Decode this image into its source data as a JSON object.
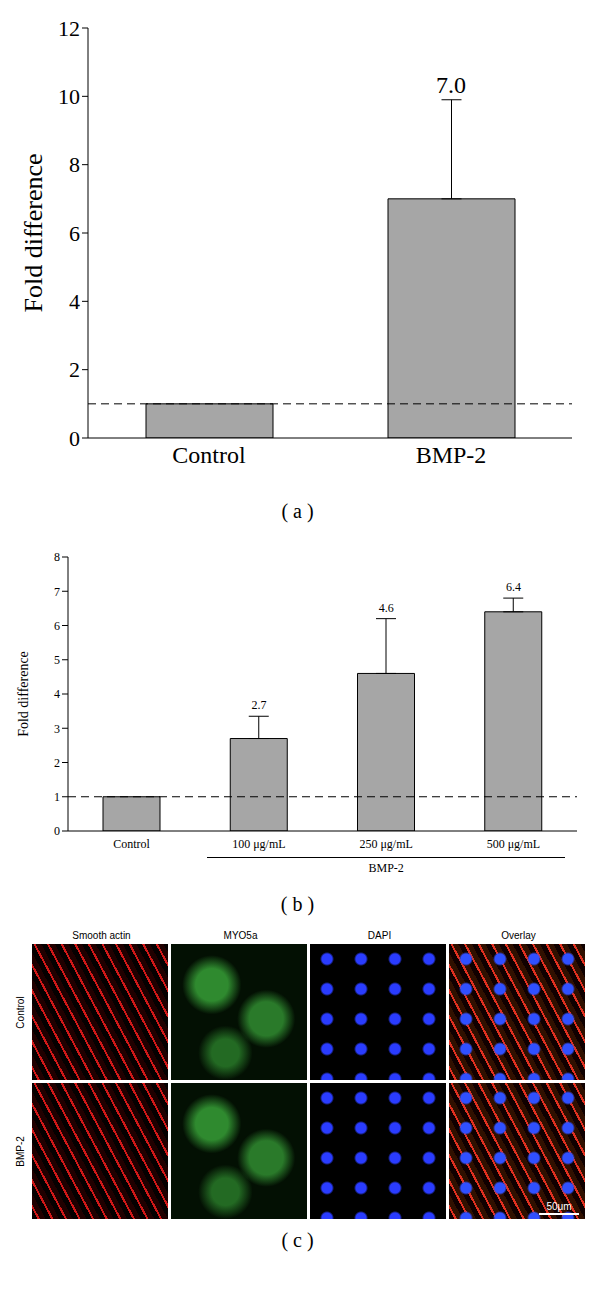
{
  "chart_data": [
    {
      "type": "bar",
      "caption": "(a)",
      "y_label": "Fold difference",
      "categories": [
        "Control",
        "BMP-2"
      ],
      "values": [
        1,
        7.0
      ],
      "errors": [
        null,
        2.9
      ],
      "data_labels": true,
      "value_labels": [
        null,
        "7.0"
      ],
      "reference_line": 1,
      "color": "#a6a6a6",
      "ylim": [
        0,
        12
      ],
      "yticks": [
        0,
        2,
        4,
        6,
        8,
        10,
        12
      ],
      "grid": false
    },
    {
      "type": "bar",
      "caption": "(b)",
      "y_label": "Fold difference",
      "categories": [
        "Control",
        "100 μg/mL",
        "250 μg/mL",
        "500 μg/mL"
      ],
      "group_label": "BMP-2",
      "values": [
        1,
        2.7,
        4.6,
        6.4
      ],
      "errors": [
        null,
        0.65,
        1.6,
        0.4
      ],
      "data_labels": true,
      "value_labels": [
        null,
        "2.7",
        "4.6",
        "6.4"
      ],
      "reference_line": 1,
      "color": "#a6a6a6",
      "ylim": [
        0,
        8
      ],
      "yticks": [
        0,
        1,
        2,
        3,
        4,
        5,
        6,
        7,
        8
      ],
      "grid": false
    }
  ],
  "image_panel": {
    "caption": "(c)",
    "columns": [
      "Smooth actin",
      "MYO5a",
      "DAPI",
      "Overlay"
    ],
    "rows": [
      "Control",
      "BMP-2"
    ],
    "scale_bar": "50μm"
  }
}
